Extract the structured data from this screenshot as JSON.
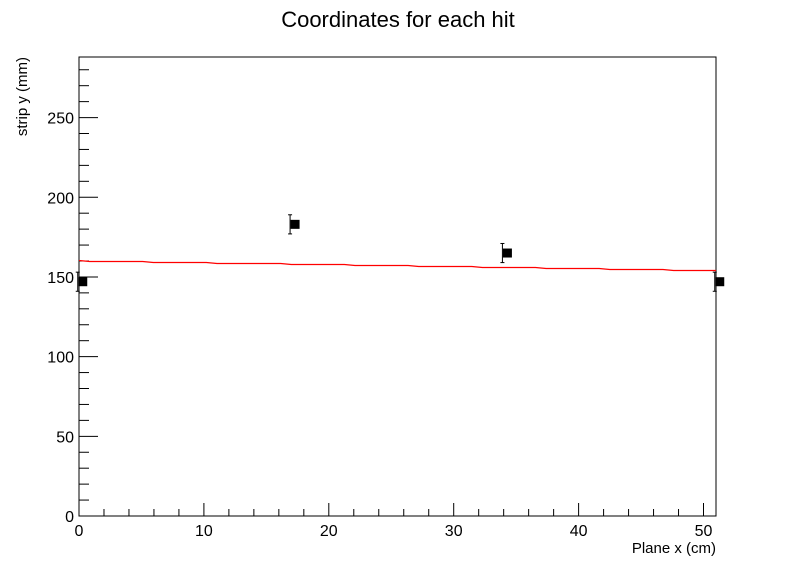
{
  "chart_data": {
    "type": "scatter",
    "title": "Coordinates for each hit",
    "xlabel": "Plane x (cm)",
    "ylabel": "strip  y (mm)",
    "xlim": [
      0,
      51
    ],
    "ylim": [
      0,
      288
    ],
    "x_ticks": [
      0,
      10,
      20,
      30,
      40,
      50
    ],
    "x_tick_labels": [
      "0",
      "10",
      "20",
      "30",
      "40",
      "50"
    ],
    "y_ticks": [
      0,
      50,
      100,
      150,
      200,
      250
    ],
    "y_tick_labels": [
      "0",
      "50",
      "100",
      "150",
      "200",
      "250"
    ],
    "grid": false,
    "series": [
      {
        "type": "points",
        "color": "#000000",
        "marker": "square",
        "points": [
          {
            "x": 0.3,
            "y": 147,
            "yerr": 6
          },
          {
            "x": 17.3,
            "y": 183,
            "yerr": 6
          },
          {
            "x": 34.3,
            "y": 165,
            "yerr": 6
          },
          {
            "x": 51.3,
            "y": 147,
            "yerr": 6
          }
        ]
      },
      {
        "type": "fit-line",
        "color": "#ff0000",
        "x": [
          0,
          51
        ],
        "y": [
          160.4,
          154.2
        ]
      }
    ]
  }
}
